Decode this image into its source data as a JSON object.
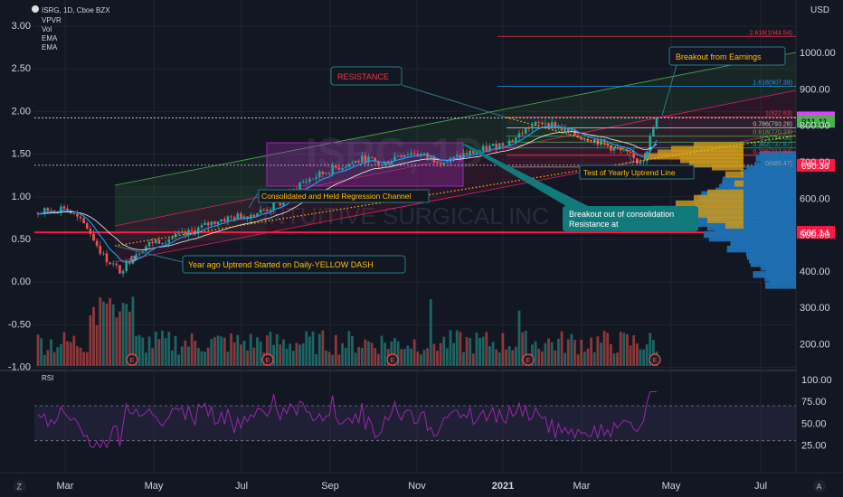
{
  "chart_data": {
    "type": "candlestick",
    "symbol_line": "ISRG, 1D, Cboe BZX",
    "indicators": [
      "VPVR",
      "Vol",
      "EMA",
      "EMA"
    ],
    "currency": "USD",
    "rsi_label": "RSI",
    "left_axis": {
      "ticks": [
        "3.00",
        "2.50",
        "2.00",
        "1.50",
        "1.00",
        "0.50",
        "0.00",
        "-0.50",
        "-1.00"
      ]
    },
    "right_axis": {
      "ticks": [
        "1000.00",
        "900.00",
        "800.00",
        "700.00",
        "600.00",
        "500.00",
        "400.00",
        "300.00",
        "200.00"
      ],
      "ylim": [
        190,
        1040
      ]
    },
    "rsi_axis": {
      "ticks": [
        "100.00",
        "75.00",
        "50.00",
        "25.00"
      ],
      "upper_band": 70,
      "lower_band": 30
    },
    "x_axis": {
      "ticks": [
        "Mar",
        "May",
        "Jul",
        "Sep",
        "Nov",
        "2021",
        "Mar",
        "May",
        "Jul"
      ]
    },
    "price_badges": [
      {
        "value": "820.67",
        "color": "#e040fb",
        "text_color": "#000000"
      },
      {
        "value": "811.11",
        "color": "#4caf50",
        "text_color": "#000000"
      },
      {
        "value": "690.36",
        "color": "#ff1744",
        "text_color": "#ffffff"
      },
      {
        "value": "506.14",
        "color": "#ff1744",
        "text_color": "#ffffff"
      }
    ],
    "fib_levels": [
      {
        "label": "2.618(1044.54)",
        "price": 1044.54,
        "color": "#f23645"
      },
      {
        "label": "1.618(907.39)",
        "price": 907.39,
        "color": "#2196f3"
      },
      {
        "label": "1(822.63)",
        "price": 822.63,
        "color": "#f23645"
      },
      {
        "label": "0.786(793.28)",
        "price": 793.28,
        "color": "#c0c0c0"
      },
      {
        "label": "0.618(770.23)",
        "price": 770.23,
        "color": "#4caf50"
      },
      {
        "label": "0.5(754.05)",
        "price": 754.05,
        "color": "#4caf50"
      },
      {
        "label": "0.382(737.87)",
        "price": 737.87,
        "color": "#26a69a"
      },
      {
        "label": "0.236(717.84)",
        "price": 717.84,
        "color": "#f23645"
      },
      {
        "label": "0(685.47)",
        "price": 685.47,
        "color": "#9e9e9e"
      }
    ],
    "annotations": {
      "resistance": "RESISTANCE",
      "breakout_earnings": "Breakout from Earnings",
      "consolidated": "Consolidated and Held Regression Channel",
      "test_uptrend": "Test of Yearly Uptrend Line",
      "breakout_consolidation_1": "Breakout out of consolidation",
      "breakout_consolidation_2": "Resistance at",
      "year_ago": "Year ago Uptrend Started on Daily-YELLOW DASH"
    },
    "watermark": {
      "ticker": "ISRG, 1D",
      "company": "INTUITIVE SURGICAL INC"
    },
    "earnings_marker": "E",
    "corner_icons": {
      "left": "Z",
      "right": "A"
    },
    "colors": {
      "up": "#26a69a",
      "down": "#ef5350",
      "rsi": "#9c27b0",
      "ema_fast": "#2196f3",
      "ema_slow": "#ffffff"
    }
  }
}
